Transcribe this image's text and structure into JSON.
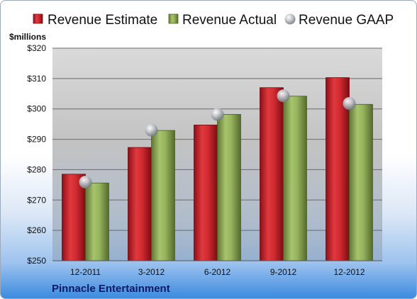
{
  "chart_data": {
    "type": "bar",
    "categories": [
      "12-2011",
      "3-2012",
      "6-2012",
      "9-2012",
      "12-2012"
    ],
    "series": [
      {
        "name": "Revenue Estimate",
        "kind": "bar",
        "color": "#c8202a",
        "values": [
          278.5,
          287.3,
          294.7,
          307.0,
          310.3
        ]
      },
      {
        "name": "Revenue Actual",
        "kind": "bar",
        "color": "#8aa653",
        "values": [
          275.6,
          292.9,
          298.2,
          304.2,
          301.5
        ]
      },
      {
        "name": "Revenue GAAP",
        "kind": "marker",
        "color": "#b8bcc4",
        "values": [
          275.9,
          293.0,
          298.2,
          304.3,
          301.8
        ]
      }
    ],
    "ylabel": "$millions",
    "ylim": [
      250,
      320
    ],
    "yticks": [
      250,
      260,
      270,
      280,
      290,
      300,
      310,
      320
    ],
    "ytick_labels": [
      "$250",
      "$260",
      "$270",
      "$280",
      "$290",
      "$300",
      "$310",
      "$320"
    ],
    "grid": true,
    "legend_position": "top"
  },
  "company_name": "Pinnacle Entertainment"
}
